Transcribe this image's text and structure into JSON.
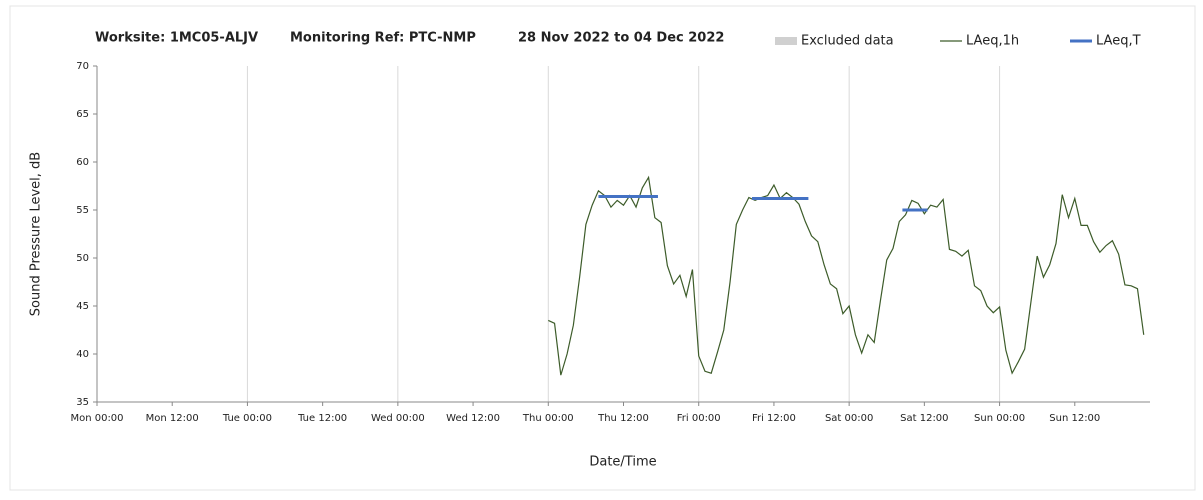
{
  "chart_data": {
    "type": "line",
    "title": [
      "Worksite: 1MC05-ALJV",
      "Monitoring Ref: PTC-NMP",
      "28 Nov 2022 to 04 Dec 2022"
    ],
    "x_label": "Date/Time",
    "y_label": "Sound Pressure Level, dB",
    "xlim": [
      0,
      168
    ],
    "xticks": [
      {
        "value": 0,
        "label": "Mon 00:00"
      },
      {
        "value": 12,
        "label": "Mon 12:00"
      },
      {
        "value": 24,
        "label": "Tue 00:00"
      },
      {
        "value": 36,
        "label": "Tue 12:00"
      },
      {
        "value": 48,
        "label": "Wed 00:00"
      },
      {
        "value": 60,
        "label": "Wed 12:00"
      },
      {
        "value": 72,
        "label": "Thu 00:00"
      },
      {
        "value": 84,
        "label": "Thu 12:00"
      },
      {
        "value": 96,
        "label": "Fri 00:00"
      },
      {
        "value": 108,
        "label": "Fri 12:00"
      },
      {
        "value": 120,
        "label": "Sat 00:00"
      },
      {
        "value": 132,
        "label": "Sat 12:00"
      },
      {
        "value": 144,
        "label": "Sun 00:00"
      },
      {
        "value": 156,
        "label": "Sun 12:00"
      }
    ],
    "ylim": [
      35,
      70
    ],
    "yticks": [
      35,
      40,
      45,
      50,
      55,
      60,
      65,
      70
    ],
    "series": [
      {
        "name": "Excluded data",
        "color": "#d0d0d0",
        "x": [],
        "values": []
      },
      {
        "name": "LAeq,1h",
        "color": "#3d5c2a",
        "x": [
          72,
          73,
          74,
          75,
          76,
          77,
          78,
          79,
          80,
          81,
          82,
          83,
          84,
          85,
          86,
          87,
          88,
          89,
          90,
          91,
          92,
          93,
          94,
          95,
          96,
          97,
          98,
          99,
          100,
          101,
          102,
          103,
          104,
          105,
          106,
          107,
          108,
          109,
          110,
          111,
          112,
          113,
          114,
          115,
          116,
          117,
          118,
          119,
          120,
          121,
          122,
          123,
          124,
          125,
          126,
          127,
          128,
          129,
          130,
          131,
          132,
          133,
          134,
          135,
          136,
          137,
          138,
          139,
          140,
          141,
          142,
          143,
          144,
          145,
          146,
          147,
          148,
          149,
          150,
          151,
          152,
          153,
          154,
          155,
          156,
          157,
          158,
          159,
          160,
          161,
          162,
          163,
          164,
          165,
          166,
          167
        ],
        "values": [
          43.5,
          43.2,
          37.8,
          40,
          43,
          48,
          53.5,
          55.5,
          57,
          56.5,
          55.3,
          56,
          55.5,
          56.5,
          55.3,
          57.3,
          58.4,
          54.2,
          53.7,
          49.2,
          47.3,
          48.2,
          46,
          48.8,
          39.8,
          38.2,
          38,
          40.2,
          42.5,
          47.5,
          53.5,
          55,
          56.3,
          56,
          56.3,
          56.5,
          57.6,
          56.2,
          56.8,
          56.3,
          55.6,
          53.8,
          52.3,
          51.7,
          49.3,
          47.3,
          46.8,
          44.2,
          45,
          42,
          40.1,
          42,
          41.2,
          45.6,
          49.8,
          51,
          53.8,
          54.5,
          56,
          55.7,
          54.6,
          55.5,
          55.3,
          56.1,
          50.9,
          50.7,
          50.2,
          50.8,
          47.1,
          46.6,
          45,
          44.3,
          44.9,
          40.4,
          38,
          39.2,
          40.5,
          45.4,
          50.2,
          48,
          49.3,
          51.5,
          56.6,
          54.2,
          56.2,
          53.4,
          53.4,
          51.7,
          50.6,
          51.3,
          51.8,
          50.4,
          47.2,
          47.1,
          46.8,
          42
        ]
      },
      {
        "name": "LAeq,T",
        "color": "#4472c4",
        "x": [
          80,
          89.5,
          97,
          104.5,
          113.5,
          121,
          128.5,
          132.5
        ],
        "values": [
          56.4,
          56.4,
          null,
          56.2,
          56.2,
          null,
          55,
          55
        ]
      }
    ]
  }
}
